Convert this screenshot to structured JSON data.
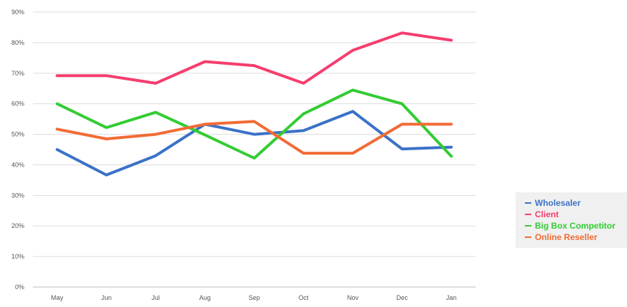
{
  "chart_data": {
    "type": "line",
    "categories": [
      "May",
      "Jun",
      "Jul",
      "Aug",
      "Sep",
      "Oct",
      "Nov",
      "Dec",
      "Jan"
    ],
    "y_ticks": [
      "0%",
      "10%",
      "20%",
      "30%",
      "40%",
      "50%",
      "60%",
      "70%",
      "80%",
      "90%"
    ],
    "ylim": [
      0,
      90
    ],
    "y_unit": "%",
    "grid": true,
    "legend_position": "right",
    "series": [
      {
        "name": "Wholesaler",
        "color": "#3b72c8",
        "values": [
          45,
          36.7,
          43,
          53.3,
          50,
          51.2,
          57.5,
          45.2,
          45.8
        ]
      },
      {
        "name": "Client",
        "color": "#f53d6e",
        "values": [
          69.2,
          69.2,
          66.7,
          73.8,
          72.5,
          66.7,
          77.5,
          83.2,
          80.8
        ]
      },
      {
        "name": "Big Box Competitor",
        "color": "#33cc33",
        "values": [
          60,
          52.2,
          57.2,
          49.8,
          42.2,
          56.7,
          64.5,
          60,
          42.8
        ]
      },
      {
        "name": "Online Reseller",
        "color": "#f26b35",
        "values": [
          51.7,
          48.5,
          50,
          53.3,
          54.2,
          43.8,
          43.8,
          53.3,
          53.3
        ]
      }
    ]
  }
}
